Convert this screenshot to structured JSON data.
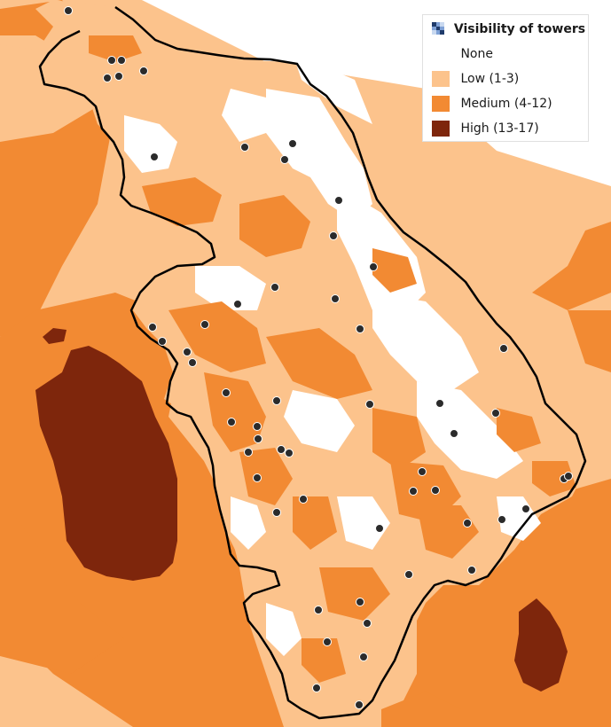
{
  "legend": {
    "title": "Visibility of towers",
    "title_icon": "raster-layer-icon",
    "items": [
      {
        "label": "None",
        "color": "#ffffff"
      },
      {
        "label": "Low (1-3)",
        "color": "#fcc38c"
      },
      {
        "label": "Medium (4-12)",
        "color": "#f28a33"
      },
      {
        "label": "High (13-17)",
        "color": "#7e260c"
      }
    ]
  },
  "colors": {
    "none": "#ffffff",
    "low": "#fcc38c",
    "medium": "#f28a33",
    "high": "#7e260c",
    "boundary": "#000000",
    "tower": "#2b2b2b"
  }
}
